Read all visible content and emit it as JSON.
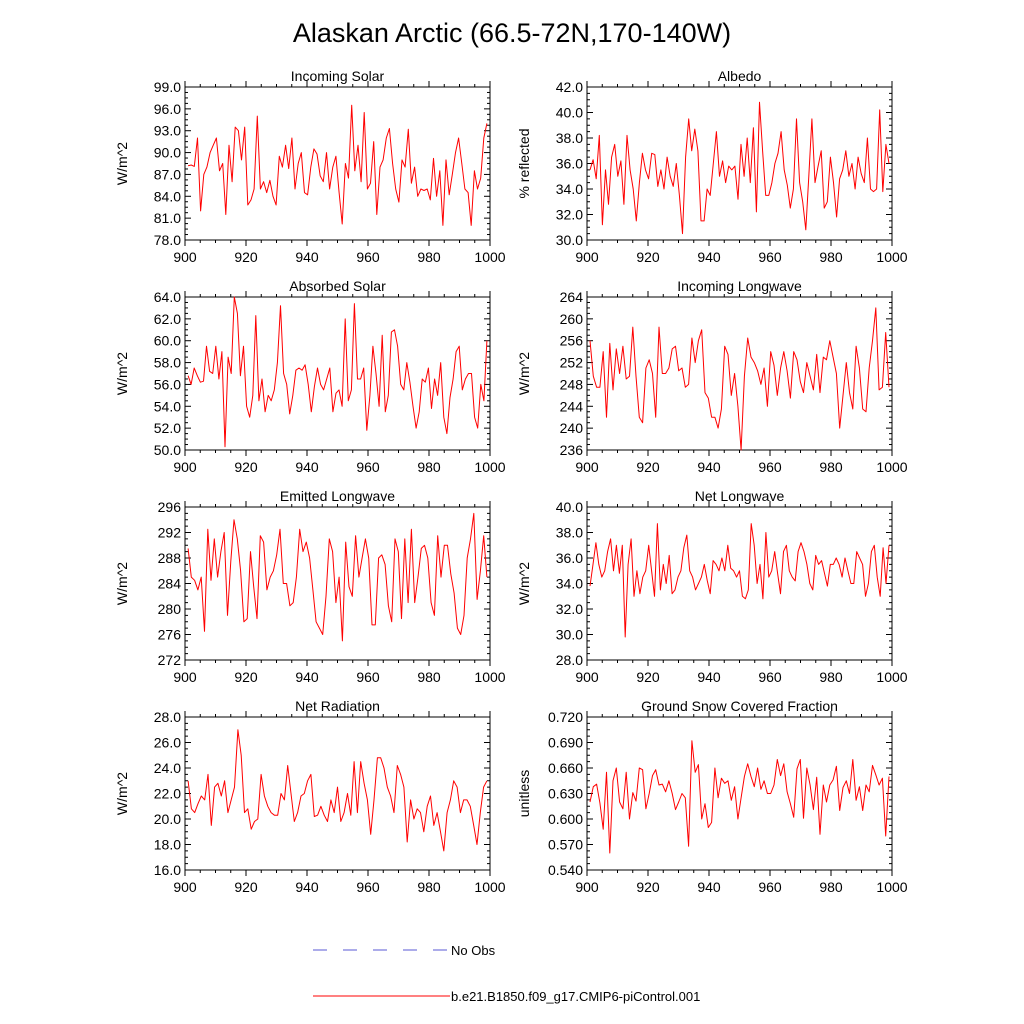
{
  "figure": {
    "title": "Alaskan Arctic (66.5-72N,170-140W)",
    "legend": [
      {
        "label": "No Obs",
        "color": "#5a5ad6",
        "style": "dashed"
      },
      {
        "label": "b.e21.B1850.f09_g17.CMIP6-piControl.001",
        "color": "#ff0000",
        "style": "solid"
      }
    ]
  },
  "chart_data": [
    {
      "type": "line",
      "title": "Incoming Solar",
      "ylabel": "W/m^2",
      "xlim": [
        900,
        1000
      ],
      "ylim": [
        78,
        99
      ],
      "yticks": [
        78,
        81,
        84,
        87,
        90,
        93,
        96,
        99
      ],
      "ytick_labels": [
        "78.0",
        "81.0",
        "84.0",
        "87.0",
        "90.0",
        "93.0",
        "96.0",
        "99.0"
      ],
      "xticks": [
        900,
        920,
        940,
        960,
        980,
        1000
      ],
      "x_start": 901,
      "color": "#ff0000",
      "values": [
        88.2,
        88.3,
        88.1,
        92.0,
        82.0,
        87.0,
        88.0,
        90.0,
        91.0,
        92.0,
        87.5,
        88.5,
        81.5,
        91.0,
        86.0,
        93.5,
        93.0,
        89.0,
        93.5,
        82.8,
        83.5,
        85.0,
        95.0,
        85.0,
        86.0,
        84.5,
        86.2,
        84.0,
        82.8,
        89.5,
        88.0,
        91.0,
        87.8,
        92.0,
        85.0,
        88.5,
        90.0,
        84.5,
        84.2,
        88.0,
        90.5,
        89.8,
        86.8,
        86.0,
        90.0,
        85.0,
        88.0,
        89.5,
        84.5,
        80.2,
        88.5,
        86.5,
        96.5,
        87.5,
        91.0,
        86.0,
        95.5,
        85.0,
        85.8,
        91.5,
        81.5,
        88.0,
        89.0,
        92.0,
        93.3,
        88.5,
        85.0,
        83.2,
        89.0,
        88.0,
        93.2,
        85.8,
        88.0,
        84.0,
        85.0,
        84.8,
        85.0,
        83.5,
        89.2,
        84.0,
        87.5,
        80.0,
        89.0,
        84.2,
        87.0,
        90.0,
        92.0,
        88.5,
        85.0,
        84.5,
        80.0,
        87.5,
        85.0,
        86.5,
        92.0,
        94.0
      ]
    },
    {
      "type": "line",
      "title": "Albedo",
      "ylabel": "% reflected",
      "xlim": [
        900,
        1000
      ],
      "ylim": [
        30,
        42
      ],
      "yticks": [
        30,
        32,
        34,
        36,
        38,
        40,
        42
      ],
      "ytick_labels": [
        "30.0",
        "32.0",
        "34.0",
        "36.0",
        "38.0",
        "40.0",
        "42.0"
      ],
      "xticks": [
        900,
        920,
        940,
        960,
        980,
        1000
      ],
      "x_start": 901,
      "color": "#ff0000",
      "values": [
        35.5,
        36.3,
        34.8,
        38.2,
        31.2,
        35.5,
        32.8,
        36.5,
        37.5,
        35.0,
        36.2,
        32.8,
        38.2,
        35.5,
        34.0,
        31.5,
        34.5,
        36.8,
        35.5,
        34.8,
        36.8,
        36.7,
        34.2,
        35.5,
        34.0,
        36.5,
        35.0,
        34.2,
        36.0,
        33.5,
        30.5,
        36.5,
        39.5,
        37.0,
        38.7,
        37.0,
        31.5,
        31.5,
        34.0,
        33.5,
        36.0,
        38.5,
        35.0,
        36.2,
        34.5,
        35.8,
        35.5,
        35.8,
        33.2,
        37.5,
        35.0,
        38.0,
        34.5,
        38.8,
        32.2,
        40.8,
        37.0,
        33.5,
        33.5,
        34.5,
        36.0,
        36.8,
        38.5,
        35.5,
        34.3,
        32.5,
        34.0,
        39.5,
        34.5,
        33.0,
        30.8,
        35.0,
        39.5,
        34.5,
        35.8,
        37.0,
        32.5,
        33.0,
        36.5,
        34.5,
        31.8,
        34.8,
        35.5,
        37.0,
        35.0,
        36.0,
        34.0,
        36.5,
        35.2,
        34.5,
        38.0,
        34.0,
        33.8,
        34.0,
        40.2,
        33.8,
        37.5,
        36.0
      ]
    },
    {
      "type": "line",
      "title": "Absorbed Solar",
      "ylabel": "W/m^2",
      "xlim": [
        900,
        1000
      ],
      "ylim": [
        50,
        64
      ],
      "yticks": [
        50,
        52,
        54,
        56,
        58,
        60,
        62,
        64
      ],
      "ytick_labels": [
        "50.0",
        "52.0",
        "54.0",
        "56.0",
        "58.0",
        "60.0",
        "62.0",
        "64.0"
      ],
      "xticks": [
        900,
        920,
        940,
        960,
        980,
        1000
      ],
      "x_start": 901,
      "color": "#ff0000",
      "values": [
        56.8,
        56.0,
        57.5,
        56.8,
        56.2,
        56.3,
        59.5,
        57.2,
        57.0,
        59.5,
        56.5,
        59.0,
        50.3,
        58.5,
        57.0,
        64.0,
        62.5,
        56.8,
        59.5,
        54.0,
        53.0,
        55.0,
        62.3,
        54.5,
        56.5,
        53.5,
        55.0,
        54.5,
        55.5,
        58.0,
        63.2,
        57.0,
        56.0,
        53.3,
        55.0,
        57.3,
        57.5,
        57.3,
        57.8,
        56.0,
        53.5,
        55.8,
        57.5,
        56.0,
        55.5,
        56.5,
        57.5,
        53.5,
        55.2,
        55.5,
        54.0,
        62.0,
        54.5,
        55.5,
        63.4,
        56.5,
        56.5,
        57.5,
        51.8,
        55.0,
        59.5,
        57.0,
        54.0,
        60.5,
        53.5,
        55.0,
        60.8,
        61.0,
        59.5,
        56.0,
        55.5,
        58.0,
        56.2,
        54.0,
        52.0,
        53.5,
        56.5,
        56.2,
        57.5,
        53.8,
        56.5,
        55.0,
        58.0,
        53.0,
        51.5,
        54.8,
        56.5,
        59.0,
        59.5,
        55.5,
        56.5,
        57.0,
        57.0,
        53.0,
        52.0,
        56.0,
        54.5,
        60.0
      ]
    },
    {
      "type": "line",
      "title": "Incoming Longwave",
      "ylabel": "W/m^2",
      "xlim": [
        900,
        1000
      ],
      "ylim": [
        236,
        264
      ],
      "yticks": [
        236,
        240,
        244,
        248,
        252,
        256,
        260,
        264
      ],
      "ytick_labels": [
        "236",
        "240",
        "244",
        "248",
        "252",
        "256",
        "260",
        "264"
      ],
      "xticks": [
        900,
        920,
        940,
        960,
        980,
        1000
      ],
      "x_start": 901,
      "color": "#ff0000",
      "values": [
        256.0,
        249.5,
        247.5,
        247.5,
        254.0,
        242.0,
        255.5,
        247.0,
        254.5,
        250.0,
        255.0,
        249.0,
        249.5,
        258.5,
        249.5,
        242.0,
        241.0,
        251.0,
        252.5,
        250.0,
        242.0,
        258.5,
        250.0,
        250.0,
        251.0,
        254.5,
        255.0,
        250.5,
        251.0,
        247.5,
        248.0,
        256.5,
        252.0,
        256.0,
        258.0,
        246.5,
        245.5,
        242.0,
        242.0,
        240.0,
        243.5,
        255.0,
        253.5,
        246.0,
        250.0,
        244.0,
        236.0,
        249.5,
        256.5,
        253.0,
        252.0,
        250.5,
        248.0,
        251.0,
        244.0,
        254.0,
        251.5,
        246.0,
        251.0,
        254.0,
        250.5,
        245.5,
        254.0,
        252.5,
        248.5,
        246.5,
        252.0,
        249.5,
        247.0,
        253.5,
        246.5,
        253.0,
        252.5,
        256.0,
        253.0,
        250.0,
        240.0,
        246.0,
        252.0,
        246.5,
        243.5,
        255.0,
        251.0,
        243.5,
        243.0,
        251.0,
        256.0,
        262.0,
        247.0,
        247.5,
        257.5,
        247.5
      ]
    },
    {
      "type": "line",
      "title": "Emitted Longwave",
      "ylabel": "W/m^2",
      "xlim": [
        900,
        1000
      ],
      "ylim": [
        272,
        296
      ],
      "yticks": [
        272,
        276,
        280,
        284,
        288,
        292,
        296
      ],
      "ytick_labels": [
        "272",
        "276",
        "280",
        "284",
        "288",
        "292",
        "296"
      ],
      "xticks": [
        900,
        920,
        940,
        960,
        980,
        1000
      ],
      "x_start": 901,
      "color": "#ff0000",
      "values": [
        289.5,
        285.0,
        284.5,
        283.0,
        285.0,
        276.5,
        292.5,
        284.5,
        291.0,
        285.0,
        289.0,
        292.0,
        279.0,
        287.5,
        294.0,
        291.0,
        286.0,
        278.0,
        278.5,
        289.0,
        283.5,
        278.5,
        291.5,
        290.5,
        283.0,
        285.0,
        286.0,
        288.5,
        292.5,
        284.0,
        284.0,
        280.5,
        281.0,
        285.0,
        292.5,
        289.0,
        290.5,
        288.0,
        283.0,
        278.0,
        277.0,
        276.0,
        282.0,
        291.0,
        289.0,
        281.0,
        285.0,
        275.0,
        290.5,
        283.5,
        282.0,
        291.5,
        285.0,
        288.0,
        291.0,
        288.0,
        277.5,
        277.5,
        288.0,
        288.5,
        287.0,
        280.5,
        278.0,
        291.0,
        289.0,
        278.5,
        291.0,
        281.0,
        292.5,
        281.0,
        285.0,
        289.5,
        290.0,
        288.0,
        281.0,
        279.0,
        291.5,
        285.0,
        290.0,
        290.0,
        285.5,
        282.5,
        277.0,
        276.0,
        279.0,
        288.0,
        291.0,
        295.0,
        281.5,
        286.0,
        291.5,
        285.0
      ]
    },
    {
      "type": "line",
      "title": "Net Longwave",
      "ylabel": "W/m^2",
      "xlim": [
        900,
        1000
      ],
      "ylim": [
        28,
        40
      ],
      "yticks": [
        28,
        30,
        32,
        34,
        36,
        38,
        40
      ],
      "ytick_labels": [
        "28.0",
        "30.0",
        "32.0",
        "34.0",
        "36.0",
        "38.0",
        "40.0"
      ],
      "xticks": [
        900,
        920,
        940,
        960,
        980,
        1000
      ],
      "x_start": 901,
      "color": "#ff0000",
      "values": [
        33.8,
        35.5,
        37.2,
        35.5,
        34.5,
        35.0,
        36.5,
        37.5,
        35.0,
        37.0,
        34.8,
        37.0,
        29.8,
        35.5,
        37.5,
        33.0,
        35.0,
        33.2,
        34.5,
        35.0,
        37.0,
        35.0,
        33.0,
        38.7,
        33.5,
        35.5,
        34.0,
        36.2,
        33.2,
        33.5,
        34.5,
        35.0,
        36.8,
        37.8,
        35.0,
        34.5,
        33.5,
        34.0,
        34.5,
        35.5,
        34.2,
        33.2,
        35.8,
        35.5,
        35.0,
        36.0,
        35.0,
        37.0,
        35.2,
        35.0,
        34.5,
        35.0,
        33.0,
        32.8,
        33.5,
        38.7,
        37.0,
        34.0,
        35.5,
        32.8,
        38.0,
        34.5,
        35.0,
        36.5,
        34.8,
        33.2,
        36.5,
        37.0,
        35.0,
        34.5,
        34.2,
        36.5,
        37.2,
        36.5,
        35.5,
        34.0,
        33.5,
        36.2,
        35.5,
        35.8,
        34.8,
        33.8,
        35.5,
        35.5,
        36.0,
        35.5,
        34.5,
        36.0,
        35.0,
        34.0,
        34.0,
        36.5,
        36.0,
        35.5,
        33.0,
        34.0,
        36.5,
        37.0,
        34.5,
        33.0,
        36.8,
        34.0,
        37.0
      ]
    },
    {
      "type": "line",
      "title": "Net Radiation",
      "ylabel": "W/m^2",
      "xlim": [
        900,
        1000
      ],
      "ylim": [
        16,
        28
      ],
      "yticks": [
        16,
        18,
        20,
        22,
        24,
        26,
        28
      ],
      "ytick_labels": [
        "16.0",
        "18.0",
        "20.0",
        "22.0",
        "24.0",
        "26.0",
        "28.0"
      ],
      "xticks": [
        900,
        920,
        940,
        960,
        980,
        1000
      ],
      "x_start": 901,
      "color": "#ff0000",
      "values": [
        23.0,
        20.8,
        20.5,
        21.2,
        21.8,
        21.5,
        23.5,
        19.5,
        22.5,
        22.8,
        21.8,
        23.0,
        20.5,
        21.5,
        22.5,
        27.0,
        25.0,
        20.5,
        20.8,
        19.2,
        19.8,
        20.0,
        23.5,
        21.8,
        21.0,
        20.5,
        20.3,
        20.3,
        22.0,
        21.5,
        24.2,
        22.0,
        19.8,
        20.5,
        21.8,
        22.0,
        23.0,
        23.5,
        20.2,
        20.3,
        21.0,
        20.3,
        19.8,
        21.5,
        20.5,
        22.5,
        19.8,
        20.5,
        22.0,
        20.3,
        24.5,
        20.5,
        24.5,
        22.8,
        21.5,
        18.8,
        21.5,
        24.8,
        24.8,
        24.0,
        22.5,
        21.8,
        20.5,
        24.2,
        23.5,
        22.5,
        18.2,
        21.5,
        20.0,
        20.8,
        20.5,
        19.0,
        21.0,
        21.8,
        19.5,
        20.5,
        19.0,
        17.5,
        20.5,
        21.5,
        23.0,
        22.5,
        20.5,
        21.5,
        21.5,
        21.0,
        19.5,
        18.0,
        20.5,
        22.5,
        23.0
      ]
    },
    {
      "type": "line",
      "title": "Ground Snow Covered Fraction",
      "ylabel": "unitless",
      "xlim": [
        900,
        1000
      ],
      "ylim": [
        0.54,
        0.72
      ],
      "yticks": [
        0.54,
        0.57,
        0.6,
        0.63,
        0.66,
        0.69,
        0.72
      ],
      "ytick_labels": [
        "0.540",
        "0.570",
        "0.600",
        "0.630",
        "0.660",
        "0.690",
        "0.720"
      ],
      "xticks": [
        900,
        920,
        940,
        960,
        980,
        1000
      ],
      "x_start": 901,
      "color": "#ff0000",
      "values": [
        0.62,
        0.638,
        0.641,
        0.619,
        0.588,
        0.655,
        0.56,
        0.645,
        0.66,
        0.62,
        0.612,
        0.655,
        0.6,
        0.631,
        0.621,
        0.66,
        0.658,
        0.612,
        0.63,
        0.651,
        0.658,
        0.64,
        0.641,
        0.632,
        0.645,
        0.63,
        0.611,
        0.62,
        0.63,
        0.625,
        0.568,
        0.692,
        0.655,
        0.664,
        0.6,
        0.618,
        0.59,
        0.596,
        0.66,
        0.625,
        0.648,
        0.642,
        0.645,
        0.622,
        0.638,
        0.6,
        0.625,
        0.65,
        0.665,
        0.65,
        0.638,
        0.66,
        0.635,
        0.645,
        0.63,
        0.63,
        0.64,
        0.67,
        0.651,
        0.665,
        0.632,
        0.618,
        0.602,
        0.659,
        0.67,
        0.601,
        0.66,
        0.64,
        0.611,
        0.649,
        0.582,
        0.64,
        0.62,
        0.64,
        0.646,
        0.662,
        0.61,
        0.637,
        0.645,
        0.63,
        0.67,
        0.622,
        0.638,
        0.61,
        0.64,
        0.632,
        0.663,
        0.652,
        0.64,
        0.648,
        0.58,
        0.65
      ]
    }
  ]
}
